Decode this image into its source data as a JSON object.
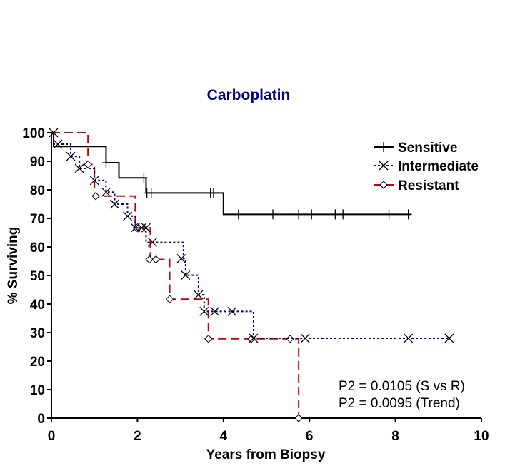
{
  "chart_data": {
    "type": "line",
    "subtype": "kaplan-meier step",
    "title": "Carboplatin",
    "xlabel": "Years from Biopsy",
    "ylabel": "% Surviving",
    "xlim": [
      0,
      10
    ],
    "ylim": [
      0,
      100
    ],
    "xticks": [
      "0",
      "2",
      "4",
      "6",
      "8",
      "10"
    ],
    "yticks": [
      "0",
      "10",
      "20",
      "30",
      "40",
      "50",
      "60",
      "70",
      "80",
      "90",
      "100"
    ],
    "grid": false,
    "legend_position": "top-right",
    "series": [
      {
        "name": "Sensitive",
        "color": "#000000",
        "dash": "solid",
        "marker": "plus",
        "steps": [
          [
            0,
            100
          ],
          [
            0.05,
            95.2
          ],
          [
            1.27,
            89.5
          ],
          [
            1.57,
            84.2
          ],
          [
            2.2,
            78.9
          ],
          [
            4.0,
            71.4
          ]
        ],
        "end_x": 8.35,
        "censored": [
          [
            1.27,
            89.5
          ],
          [
            2.15,
            84.2
          ],
          [
            2.22,
            78.9
          ],
          [
            2.32,
            78.9
          ],
          [
            3.7,
            78.9
          ],
          [
            3.77,
            78.9
          ],
          [
            4.35,
            71.4
          ],
          [
            5.15,
            71.4
          ],
          [
            5.75,
            71.4
          ],
          [
            6.05,
            71.4
          ],
          [
            6.6,
            71.4
          ],
          [
            6.78,
            71.4
          ],
          [
            7.85,
            71.4
          ],
          [
            8.3,
            71.4
          ]
        ]
      },
      {
        "name": "Intermediate",
        "color": "#000080",
        "dash": "dotted",
        "marker": "x",
        "steps": [
          [
            0,
            100
          ],
          [
            0.05,
            96
          ],
          [
            0.45,
            91.7
          ],
          [
            0.65,
            87.5
          ],
          [
            1.0,
            83.3
          ],
          [
            1.27,
            79.2
          ],
          [
            1.47,
            75
          ],
          [
            1.77,
            70.8
          ],
          [
            1.95,
            66.7
          ],
          [
            2.2,
            61.6
          ],
          [
            3.07,
            55.9
          ],
          [
            3.12,
            50.1
          ],
          [
            3.42,
            43.2
          ],
          [
            3.55,
            37.4
          ],
          [
            4.7,
            28
          ]
        ],
        "end_x": 9.25,
        "censored": [
          [
            0.05,
            100
          ],
          [
            0.15,
            96
          ],
          [
            0.45,
            91.7
          ],
          [
            0.65,
            87.5
          ],
          [
            1.0,
            83.3
          ],
          [
            1.27,
            79.2
          ],
          [
            1.47,
            75
          ],
          [
            1.77,
            70.8
          ],
          [
            1.95,
            66.7
          ],
          [
            2.1,
            66.7
          ],
          [
            2.2,
            66.7
          ],
          [
            2.35,
            61.6
          ],
          [
            3.02,
            55.9
          ],
          [
            3.12,
            50.1
          ],
          [
            3.42,
            43.2
          ],
          [
            3.55,
            37.4
          ],
          [
            3.8,
            37.4
          ],
          [
            4.2,
            37.4
          ],
          [
            4.7,
            28
          ],
          [
            5.9,
            28
          ],
          [
            8.3,
            28
          ],
          [
            9.25,
            28
          ]
        ]
      },
      {
        "name": "Resistant",
        "color": "#cc0000",
        "dash": "dashed",
        "marker": "diamond",
        "steps": [
          [
            0,
            100
          ],
          [
            0.85,
            88.9
          ],
          [
            1.0,
            77.8
          ],
          [
            1.95,
            66.7
          ],
          [
            2.3,
            55.6
          ],
          [
            2.75,
            41.7
          ],
          [
            3.65,
            27.8
          ],
          [
            5.75,
            0
          ]
        ],
        "end_x": 5.75,
        "censored": [
          [
            0.85,
            88.9
          ],
          [
            1.03,
            77.8
          ],
          [
            1.98,
            66.7
          ],
          [
            2.28,
            55.6
          ],
          [
            2.43,
            55.6
          ],
          [
            2.75,
            41.7
          ],
          [
            3.65,
            27.8
          ],
          [
            4.65,
            27.8
          ],
          [
            5.55,
            27.8
          ],
          [
            5.75,
            0
          ]
        ]
      }
    ],
    "annotations": [
      "P2 = 0.0105 (S vs R)",
      "P2 = 0.0095 (Trend)"
    ]
  }
}
